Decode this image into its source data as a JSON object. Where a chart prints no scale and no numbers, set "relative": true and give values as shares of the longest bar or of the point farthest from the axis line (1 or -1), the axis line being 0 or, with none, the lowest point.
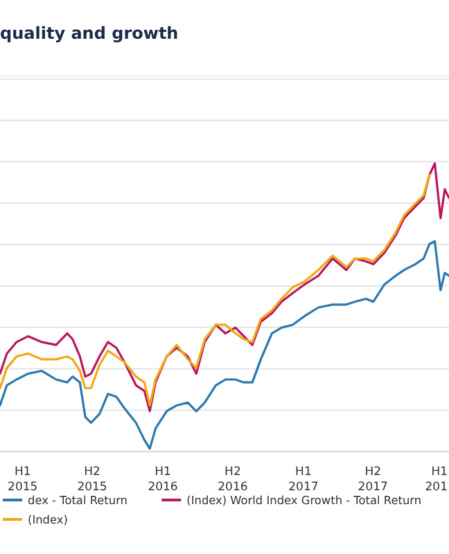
{
  "chart_data": {
    "type": "line",
    "title": "quality and growth",
    "relative": true,
    "grid": "y",
    "legend": "bottom",
    "marker": "none",
    "line_style": "solid",
    "x": [
      "2014-11-03",
      "2014-11-21",
      "2014-12-16",
      "2015-01-15",
      "2015-02-20",
      "2015-03-29",
      "2015-04-27",
      "2015-05-11",
      "2015-05-30",
      "2015-06-13",
      "2015-06-28",
      "2015-07-20",
      "2015-08-11",
      "2015-09-02",
      "2015-09-23",
      "2015-10-23",
      "2015-11-14",
      "2015-11-28",
      "2015-12-13",
      "2016-01-11",
      "2016-02-06",
      "2016-03-06",
      "2016-03-28",
      "2016-04-19",
      "2016-05-18",
      "2016-06-12",
      "2016-07-08",
      "2016-07-30",
      "2016-08-21",
      "2016-09-12",
      "2016-10-11",
      "2016-11-05",
      "2016-12-04",
      "2017-01-04",
      "2017-02-09",
      "2017-03-18",
      "2017-04-23",
      "2017-05-15",
      "2017-06-13",
      "2017-07-02",
      "2017-07-31",
      "2017-08-29",
      "2017-09-20",
      "2017-10-19",
      "2017-11-10",
      "2017-11-25",
      "2017-12-09",
      "2017-12-24",
      "2018-01-04",
      "2018-01-15"
    ],
    "xlim": [
      "2014-11-03",
      "2018-01-15"
    ],
    "xticks": [
      {
        "value": "2015-01-01",
        "label": "H1\n2015"
      },
      {
        "value": "2015-07-01",
        "label": "H2\n2015"
      },
      {
        "value": "2016-01-01",
        "label": "H1\n2016"
      },
      {
        "value": "2016-07-01",
        "label": "H2\n2016"
      },
      {
        "value": "2017-01-01",
        "label": "H1\n2017"
      },
      {
        "value": "2017-07-01",
        "label": "H2\n2017"
      },
      {
        "value": "2018-01-01",
        "label": "H1\n201"
      }
    ],
    "series": [
      {
        "name": "dex - Total Return",
        "color": "#2a78b0",
        "values": [
          0.16,
          0.23,
          0.25,
          0.27,
          0.28,
          0.25,
          0.24,
          0.26,
          0.24,
          0.12,
          0.1,
          0.13,
          0.2,
          0.19,
          0.15,
          0.1,
          0.04,
          0.01,
          0.08,
          0.14,
          0.16,
          0.17,
          0.14,
          0.17,
          0.23,
          0.25,
          0.25,
          0.24,
          0.24,
          0.32,
          0.41,
          0.43,
          0.44,
          0.47,
          0.5,
          0.51,
          0.51,
          0.52,
          0.53,
          0.52,
          0.58,
          0.61,
          0.63,
          0.65,
          0.67,
          0.72,
          0.73,
          0.56,
          0.62,
          0.61
        ]
      },
      {
        "name": "(Index) World Index Growth - Total Return",
        "color": "#b8185f",
        "values": [
          0.27,
          0.34,
          0.38,
          0.4,
          0.38,
          0.37,
          0.41,
          0.39,
          0.33,
          0.26,
          0.27,
          0.33,
          0.38,
          0.36,
          0.31,
          0.23,
          0.21,
          0.14,
          0.24,
          0.33,
          0.36,
          0.33,
          0.27,
          0.38,
          0.44,
          0.41,
          0.43,
          0.4,
          0.37,
          0.45,
          0.48,
          0.52,
          0.55,
          0.58,
          0.61,
          0.67,
          0.63,
          0.67,
          0.66,
          0.65,
          0.69,
          0.75,
          0.81,
          0.85,
          0.88,
          0.96,
          1,
          0.81,
          0.91,
          0.88
        ]
      },
      {
        "name": "(Index)",
        "color": "#f0a818",
        "values": [
          0.22,
          0.29,
          0.33,
          0.34,
          0.32,
          0.32,
          0.33,
          0.32,
          0.28,
          0.22,
          0.22,
          0.3,
          0.35,
          0.33,
          0.31,
          0.26,
          0.24,
          0.16,
          0.25,
          0.33,
          0.37,
          0.32,
          0.29,
          0.39,
          0.44,
          0.44,
          0.41,
          0.39,
          0.38,
          0.46,
          0.49,
          0.53,
          0.57,
          0.59,
          0.63,
          0.68,
          0.64,
          0.67,
          0.67,
          0.66,
          0.7,
          0.76,
          0.82,
          0.86,
          0.89,
          0.96,
          null,
          null,
          null,
          null
        ]
      }
    ]
  }
}
